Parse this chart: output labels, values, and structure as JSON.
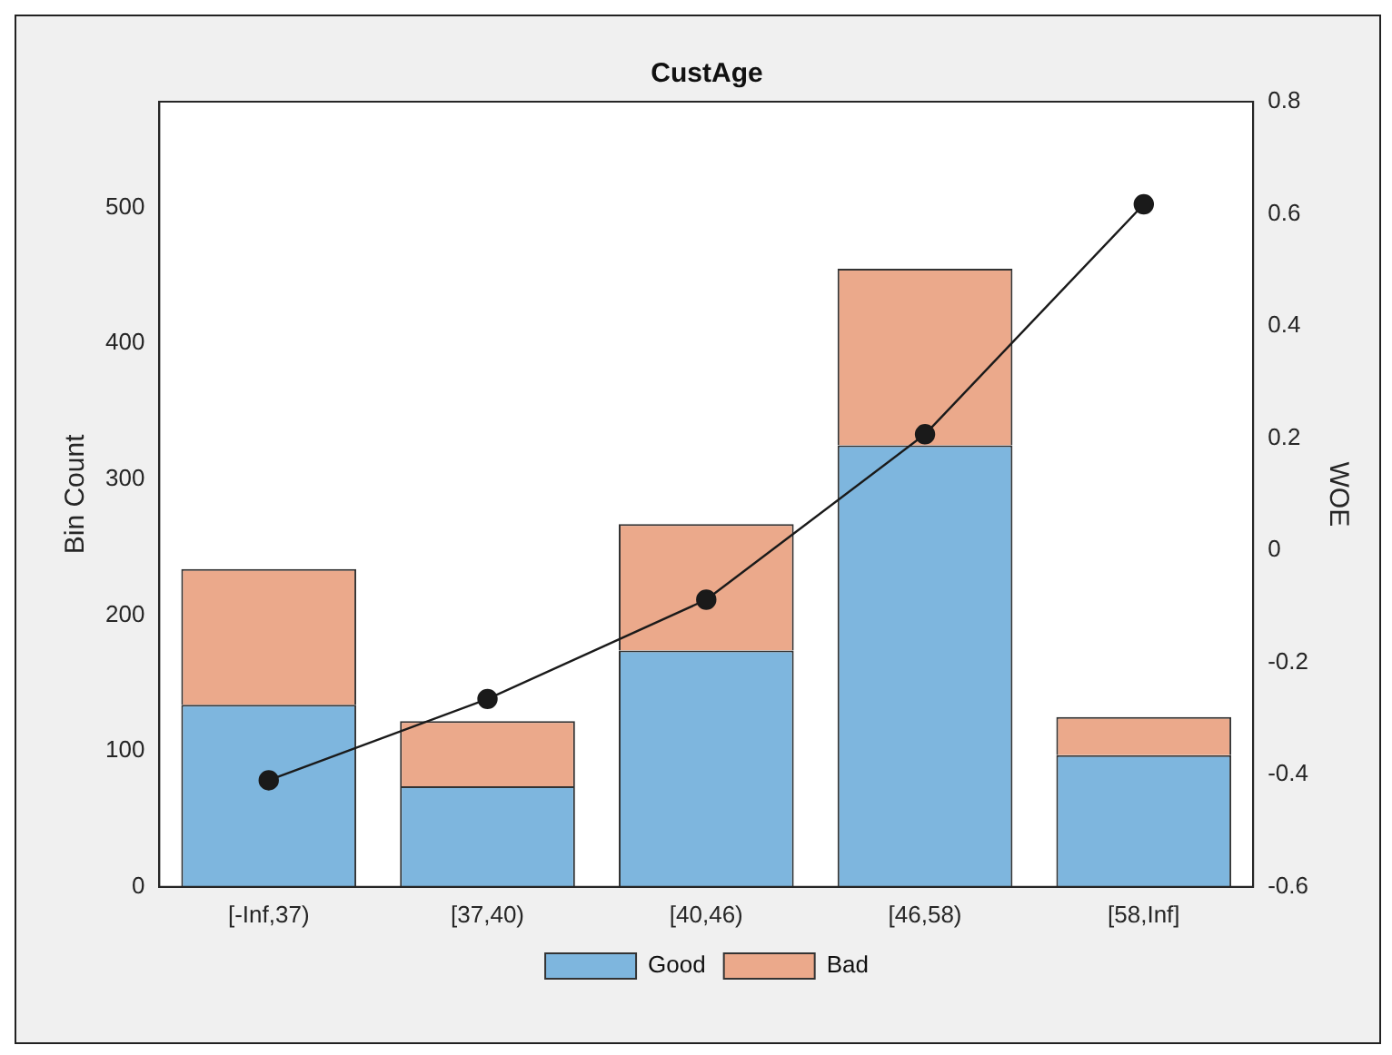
{
  "chart_data": {
    "type": "bar",
    "title": "CustAge",
    "ylabel": "Bin Count",
    "y2label": "WOE",
    "categories": [
      "[-Inf,37)",
      "[37,40)",
      "[40,46)",
      "[46,58)",
      "[58,Inf]"
    ],
    "stacked": true,
    "series": [
      {
        "name": "Good",
        "color": "#7eb6de",
        "values": [
          134,
          74,
          174,
          325,
          97
        ]
      },
      {
        "name": "Bad",
        "color": "#eba98b",
        "values": [
          100,
          48,
          93,
          130,
          28
        ]
      },
      {
        "type": "line",
        "axis": "y2",
        "color": "#1a1a1a",
        "marker": "circle",
        "values": [
          -0.41,
          -0.265,
          -0.088,
          0.207,
          0.617
        ]
      }
    ],
    "ylim": [
      0,
      578
    ],
    "yticks": [
      0,
      100,
      200,
      300,
      400,
      500
    ],
    "y2lim": [
      -0.6,
      0.8
    ],
    "y2ticks": [
      -0.6,
      -0.4,
      -0.2,
      0,
      0.2,
      0.4,
      0.6,
      0.8
    ],
    "legend": "bottom",
    "grid": false
  }
}
